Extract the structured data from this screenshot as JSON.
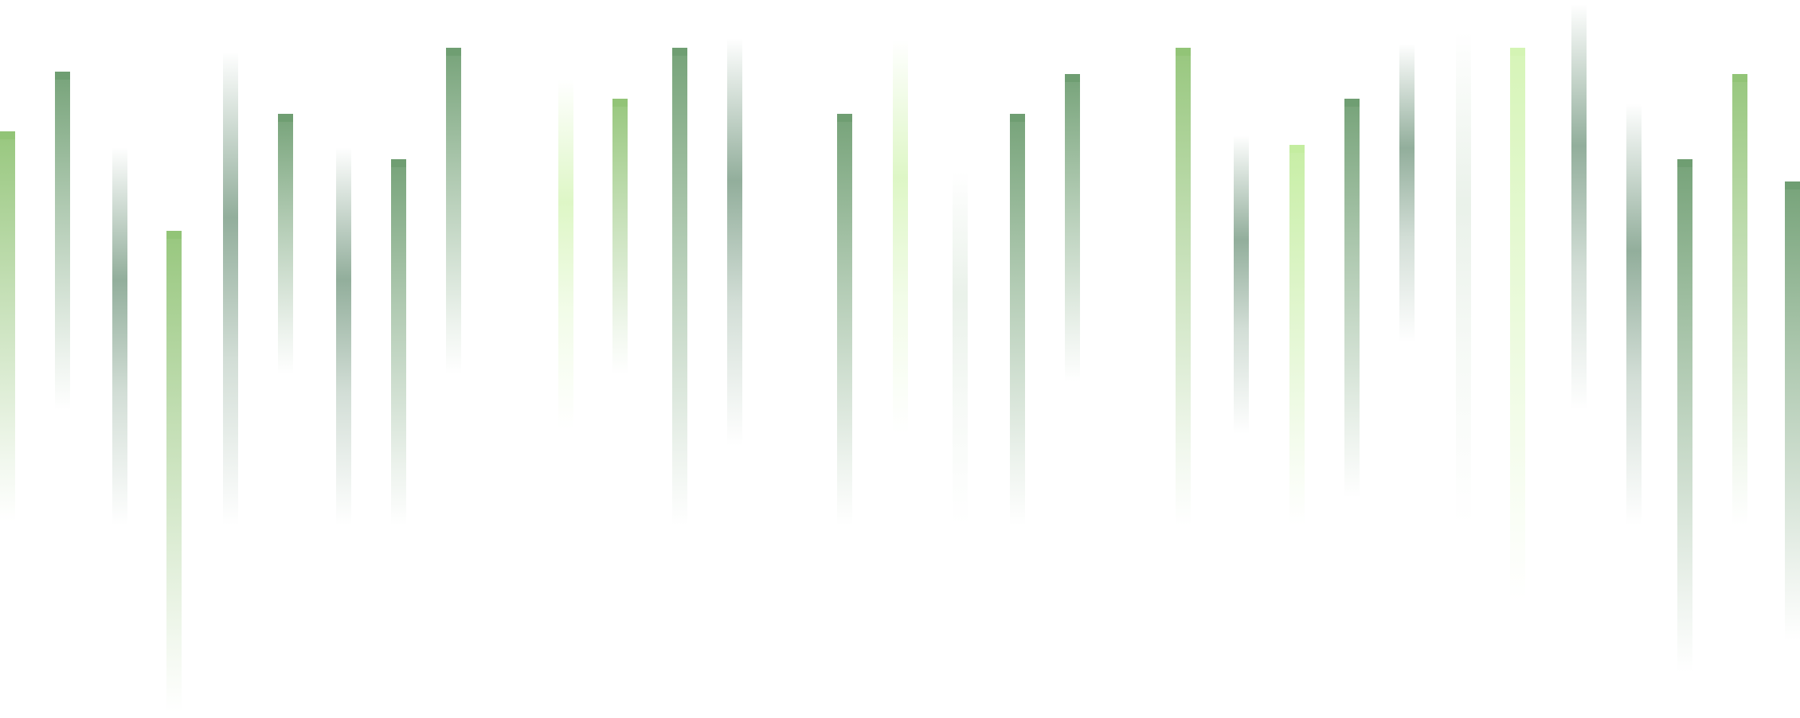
{
  "colors": {
    "background": "#ffffff",
    "dark_green": "#6f9e72",
    "mid_green": "#92c477",
    "light_green": "#c4eda0",
    "pale_green": "#e0f7c8",
    "gray_green": "#7fa08a"
  },
  "bars": [
    {
      "style": "cap",
      "color": "#92c477"
    },
    {
      "style": "cap",
      "color": "#6f9e72"
    },
    {
      "style": "fade",
      "color": "#7fa08a"
    },
    {
      "style": "cap",
      "color": "#92c477"
    },
    {
      "style": "fade",
      "color": "#7fa08a"
    },
    {
      "style": "cap",
      "color": "#6f9e72"
    },
    {
      "style": "fade",
      "color": "#7fa08a"
    },
    {
      "style": "cap",
      "color": "#6f9e72"
    },
    {
      "style": "cap",
      "color": "#6f9e72"
    },
    {
      "style": "fade",
      "color": "#d8f5bc"
    },
    {
      "style": "cap",
      "color": "#92c477"
    },
    {
      "style": "cap",
      "color": "#6f9e72"
    },
    {
      "style": "fade",
      "color": "#7fa08a"
    },
    {
      "style": "cap",
      "color": "#6f9e72"
    },
    {
      "style": "fade",
      "color": "#d8f5bc"
    },
    {
      "style": "fade",
      "color": "#e6efe6"
    },
    {
      "style": "cap",
      "color": "#6f9e72"
    },
    {
      "style": "cap",
      "color": "#6f9e72"
    },
    {
      "style": "cap",
      "color": "#92c477"
    },
    {
      "style": "fade",
      "color": "#7fa08a"
    },
    {
      "style": "cap",
      "color": "#c4eda0"
    },
    {
      "style": "cap",
      "color": "#6f9e72"
    },
    {
      "style": "fade",
      "color": "#7fa08a"
    },
    {
      "style": "fade",
      "color": "#e6efe6"
    },
    {
      "style": "cap",
      "color": "#d4f4b4"
    },
    {
      "style": "fade",
      "color": "#7fa08a"
    },
    {
      "style": "fade",
      "color": "#7fa08a"
    },
    {
      "style": "cap",
      "color": "#6f9e72"
    },
    {
      "style": "cap",
      "color": "#92c477"
    },
    {
      "style": "cap",
      "color": "#6f9e72"
    }
  ]
}
